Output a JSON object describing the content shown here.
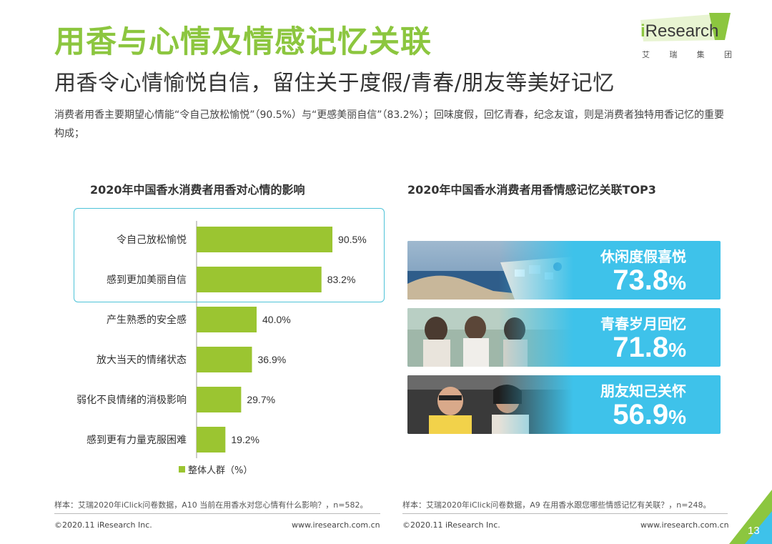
{
  "header": {
    "title": "用香与心情及情感记忆关联",
    "subtitle": "用香令心情愉悦自信，留住关于度假/青春/朋友等美好记忆",
    "description": "消费者用香主要期望心情能“令自己放松愉悦”（90.5%）与“更感美丽自信”（83.2%）；回味度假，回忆青春，纪念友谊，则是消费者独特用香记忆的重要构成；"
  },
  "logo": {
    "brand_i": "i",
    "brand_rest": "Research",
    "sub_chars": [
      "艾",
      "瑞",
      "集",
      "团"
    ],
    "color": "#8cc63f"
  },
  "chart_data": [
    {
      "type": "bar",
      "orientation": "horizontal",
      "title": "2020年中国香水消费者用香对心情的影响",
      "categories": [
        "令自己放松愉悦",
        "感到更加美丽自信",
        "产生熟悉的安全感",
        "放大当天的情绪状态",
        "弱化不良情绪的消极影响",
        "感到更有力量克服困难"
      ],
      "series": [
        {
          "name": "整体人群（%）",
          "values": [
            90.5,
            83.2,
            40.0,
            36.9,
            29.7,
            19.2
          ]
        }
      ],
      "value_labels": [
        "90.5%",
        "83.2%",
        "40.0%",
        "36.9%",
        "29.7%",
        "19.2%"
      ],
      "xlim": [
        0,
        100
      ],
      "bar_color": "#9bc531",
      "highlight": [
        "令自己放松愉悦",
        "感到更加美丽自信"
      ],
      "highlight_color": "#4ec3d8",
      "legend_position": "bottom",
      "grid": false
    },
    {
      "type": "table",
      "title": "2020年中国香水消费者用香情感记忆关联TOP3",
      "rows": [
        {
          "label": "休闲度假喜悦",
          "value": 73.8
        },
        {
          "label": "青春岁月回忆",
          "value": 71.8
        },
        {
          "label": "朋友知己关怀",
          "value": 56.9
        }
      ],
      "card_color": "#3ec2ea"
    }
  ],
  "memory_cards": [
    {
      "label": "休闲度假喜悦",
      "number": "73.8",
      "pct": "%",
      "image": "seaside-village-photo"
    },
    {
      "label": "青春岁月回忆",
      "number": "71.8",
      "pct": "%",
      "image": "friends-photo"
    },
    {
      "label": "朋友知己关怀",
      "number": "56.9",
      "pct": "%",
      "image": "laughing-friends-photo"
    }
  ],
  "legend": {
    "label": "整体人群（%）"
  },
  "footer": {
    "note_left": "样本：艾瑞2020年iClick问卷数据，A10 当前在用香水对您心情有什么影响？，n=582。",
    "note_right": "样本：艾瑞2020年iClick问卷数据，A9 在用香水跟您哪些情感记忆有关联？，n=248。",
    "copyright": "©2020.11 iResearch Inc.",
    "website": "www.iresearch.com.cn",
    "page_number": "13"
  }
}
